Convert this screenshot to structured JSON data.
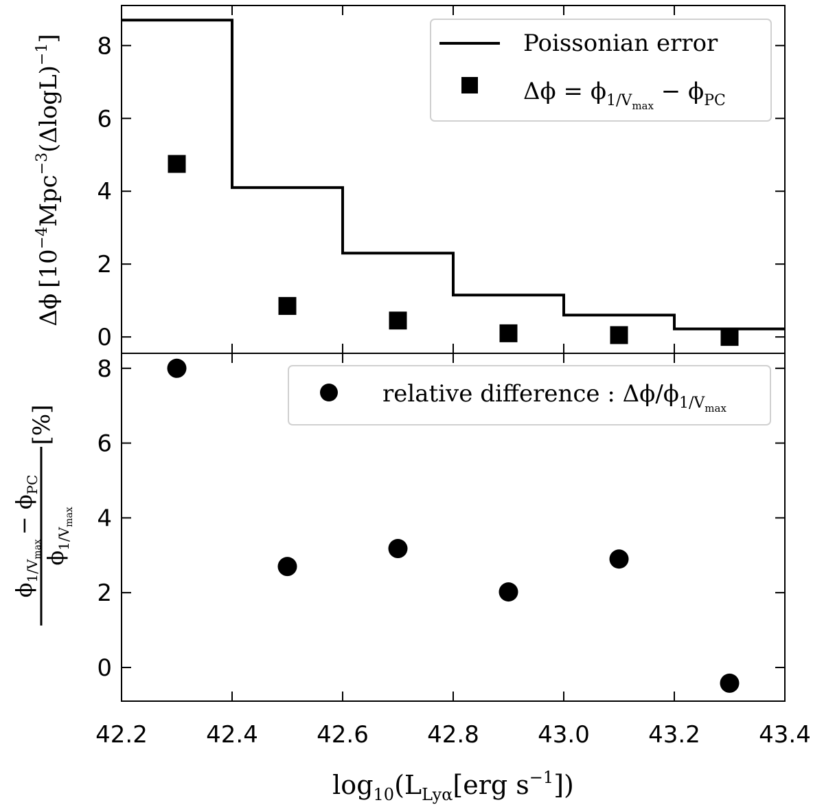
{
  "chart_data": [
    {
      "type": "line",
      "panel": "top",
      "xlim": [
        42.2,
        43.4
      ],
      "ylim": [
        -0.45,
        9.1
      ],
      "yticks": [
        0,
        2,
        4,
        6,
        8
      ],
      "ylabel": {
        "delta_phi": "Δϕ",
        "open": "[10",
        "exponent_a": "−4",
        "unit": "Mpc",
        "exponent_b": "−3",
        "paren": "(ΔlogL)",
        "exponent_c": "−1",
        "close": "]"
      },
      "poisson_error": {
        "name": "Poissonian error",
        "edges": [
          42.2,
          42.4,
          42.6,
          42.8,
          43.0,
          43.2,
          43.4
        ],
        "values": [
          8.7,
          4.1,
          2.3,
          1.15,
          0.6,
          0.22
        ]
      },
      "delta_phi": {
        "x": [
          42.3,
          42.5,
          42.7,
          42.9,
          43.1,
          43.3
        ],
        "values": [
          4.75,
          0.85,
          0.45,
          0.1,
          0.05,
          0.0
        ]
      },
      "legend": {
        "line_label": "Poissonian error",
        "square_label": {
          "lhs": "Δϕ = ϕ",
          "sub1": "1/V",
          "sub1b": "max",
          "minus": " − ϕ",
          "sub2": "PC"
        }
      }
    },
    {
      "type": "scatter",
      "panel": "bottom",
      "xlim": [
        42.2,
        43.4
      ],
      "ylim": [
        -0.9,
        8.4
      ],
      "yticks": [
        0,
        2,
        4,
        6,
        8
      ],
      "series": [
        {
          "name": "relative difference",
          "x": [
            42.3,
            42.5,
            42.7,
            42.9,
            43.1,
            43.3
          ],
          "values": [
            8.0,
            2.7,
            3.18,
            2.02,
            2.9,
            -0.42
          ]
        }
      ],
      "legend": {
        "label_text": "relative difference",
        "colon": " : ",
        "formula": "Δϕ/ϕ",
        "sub": "1/V",
        "subsub": "max"
      },
      "ylabel": {
        "num_phi": "ϕ",
        "num_sub": "1/V",
        "num_subsub": "max",
        "num_minus": "− ϕ",
        "num_sub2": "PC",
        "den_phi": "ϕ",
        "den_sub": "1/V",
        "den_subsub": "max",
        "unit": "[%]"
      }
    }
  ],
  "xaxis": {
    "ticks": [
      42.2,
      42.4,
      42.6,
      42.8,
      43.0,
      43.2,
      43.4
    ],
    "tick_labels": [
      "42.2",
      "42.4",
      "42.6",
      "42.8",
      "43.0",
      "43.2",
      "43.4"
    ],
    "label": {
      "log": "log",
      "log_sub": "10",
      "open": "(L",
      "l_sub": "Lyα",
      "bracket": "[erg s",
      "exp": "−1",
      "close": "])"
    }
  }
}
